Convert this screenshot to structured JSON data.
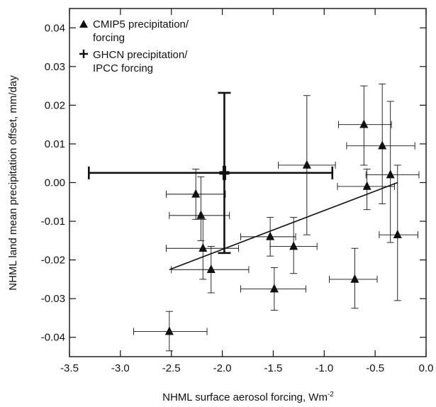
{
  "chart_data": {
    "type": "scatter",
    "title": "",
    "xlabel_main": "NHML surface aerosol forcing, Wm",
    "xlabel_sup": "-2",
    "ylabel": "NHML land mean precipitation offset, mm/day",
    "xlim": [
      -3.5,
      0.0
    ],
    "ylim": [
      -0.045,
      0.045
    ],
    "x_ticks": [
      "-3.5",
      "-3.0",
      "-2.5",
      "-2.0",
      "-1.5",
      "-1.0",
      "-0.5",
      "0.0"
    ],
    "x_tick_values": [
      -3.5,
      -3.0,
      -2.5,
      -2.0,
      -1.5,
      -1.0,
      -0.5,
      0.0
    ],
    "y_ticks": [
      "0.04",
      "0.03",
      "0.02",
      "0.01",
      "0.00",
      "-0.01",
      "-0.02",
      "-0.03",
      "-0.04"
    ],
    "y_tick_values": [
      0.04,
      0.03,
      0.02,
      0.01,
      0.0,
      -0.01,
      -0.02,
      -0.03,
      -0.04
    ],
    "grid": false,
    "legend_position": "top-left",
    "legend": [
      {
        "marker": "triangle",
        "line1": "CMIP5 precipitation/",
        "line2": "forcing"
      },
      {
        "marker": "plus",
        "line1": "GHCN precipitation/",
        "line2": "IPCC forcing"
      }
    ],
    "series": [
      {
        "name": "CMIP5 precipitation/forcing",
        "marker": "triangle",
        "points": [
          {
            "x": -2.52,
            "y": -0.0385,
            "x_lo": -2.87,
            "x_hi": -2.15,
            "y_lo": -0.0435,
            "y_hi": -0.0333
          },
          {
            "x": -2.26,
            "y": -0.003,
            "x_lo": -2.55,
            "x_hi": -1.97,
            "y_lo": -0.0095,
            "y_hi": 0.0035
          },
          {
            "x": -2.21,
            "y": -0.0085,
            "x_lo": -2.52,
            "x_hi": -1.93,
            "y_lo": -0.015,
            "y_hi": 0.0015
          },
          {
            "x": -2.19,
            "y": -0.017,
            "x_lo": -2.55,
            "x_hi": -1.84,
            "y_lo": -0.025,
            "y_hi": -0.0095
          },
          {
            "x": -2.11,
            "y": -0.0225,
            "x_lo": -2.5,
            "x_hi": -1.74,
            "y_lo": -0.0285,
            "y_hi": -0.0165
          },
          {
            "x": -1.53,
            "y": -0.014,
            "x_lo": -1.82,
            "x_hi": -1.28,
            "y_lo": -0.019,
            "y_hi": -0.009
          },
          {
            "x": -1.49,
            "y": -0.0275,
            "x_lo": -1.82,
            "x_hi": -1.18,
            "y_lo": -0.033,
            "y_hi": -0.022
          },
          {
            "x": -1.3,
            "y": -0.0165,
            "x_lo": -1.53,
            "x_hi": -1.07,
            "y_lo": -0.0235,
            "y_hi": -0.009
          },
          {
            "x": -1.17,
            "y": 0.0045,
            "x_lo": -1.45,
            "x_hi": -0.89,
            "y_lo": -0.0135,
            "y_hi": 0.0225
          },
          {
            "x": -0.7,
            "y": -0.025,
            "x_lo": -0.95,
            "x_hi": -0.48,
            "y_lo": -0.0325,
            "y_hi": -0.017
          },
          {
            "x": -0.61,
            "y": 0.015,
            "x_lo": -0.86,
            "x_hi": -0.34,
            "y_lo": 0.0045,
            "y_hi": 0.025
          },
          {
            "x": -0.58,
            "y": -0.001,
            "x_lo": -0.87,
            "x_hi": -0.31,
            "y_lo": -0.007,
            "y_hi": 0.0035
          },
          {
            "x": -0.43,
            "y": 0.0095,
            "x_lo": -0.78,
            "x_hi": -0.11,
            "y_lo": -0.0055,
            "y_hi": 0.0255
          },
          {
            "x": -0.35,
            "y": 0.002,
            "x_lo": -0.59,
            "x_hi": -0.07,
            "y_lo": -0.0155,
            "y_hi": 0.021
          },
          {
            "x": -0.28,
            "y": -0.0135,
            "x_lo": -0.46,
            "x_hi": -0.08,
            "y_lo": -0.0305,
            "y_hi": 0.0045
          }
        ]
      },
      {
        "name": "GHCN precipitation/IPCC forcing",
        "marker": "plus",
        "points": [
          {
            "x": -1.98,
            "y": 0.0025,
            "x_lo": -3.31,
            "x_hi": -0.92,
            "y_lo": -0.0182,
            "y_hi": 0.0232
          }
        ]
      }
    ],
    "regression_line": {
      "x1": -2.52,
      "y1": -0.0225,
      "x2": -0.28,
      "y2": 0.0
    }
  }
}
